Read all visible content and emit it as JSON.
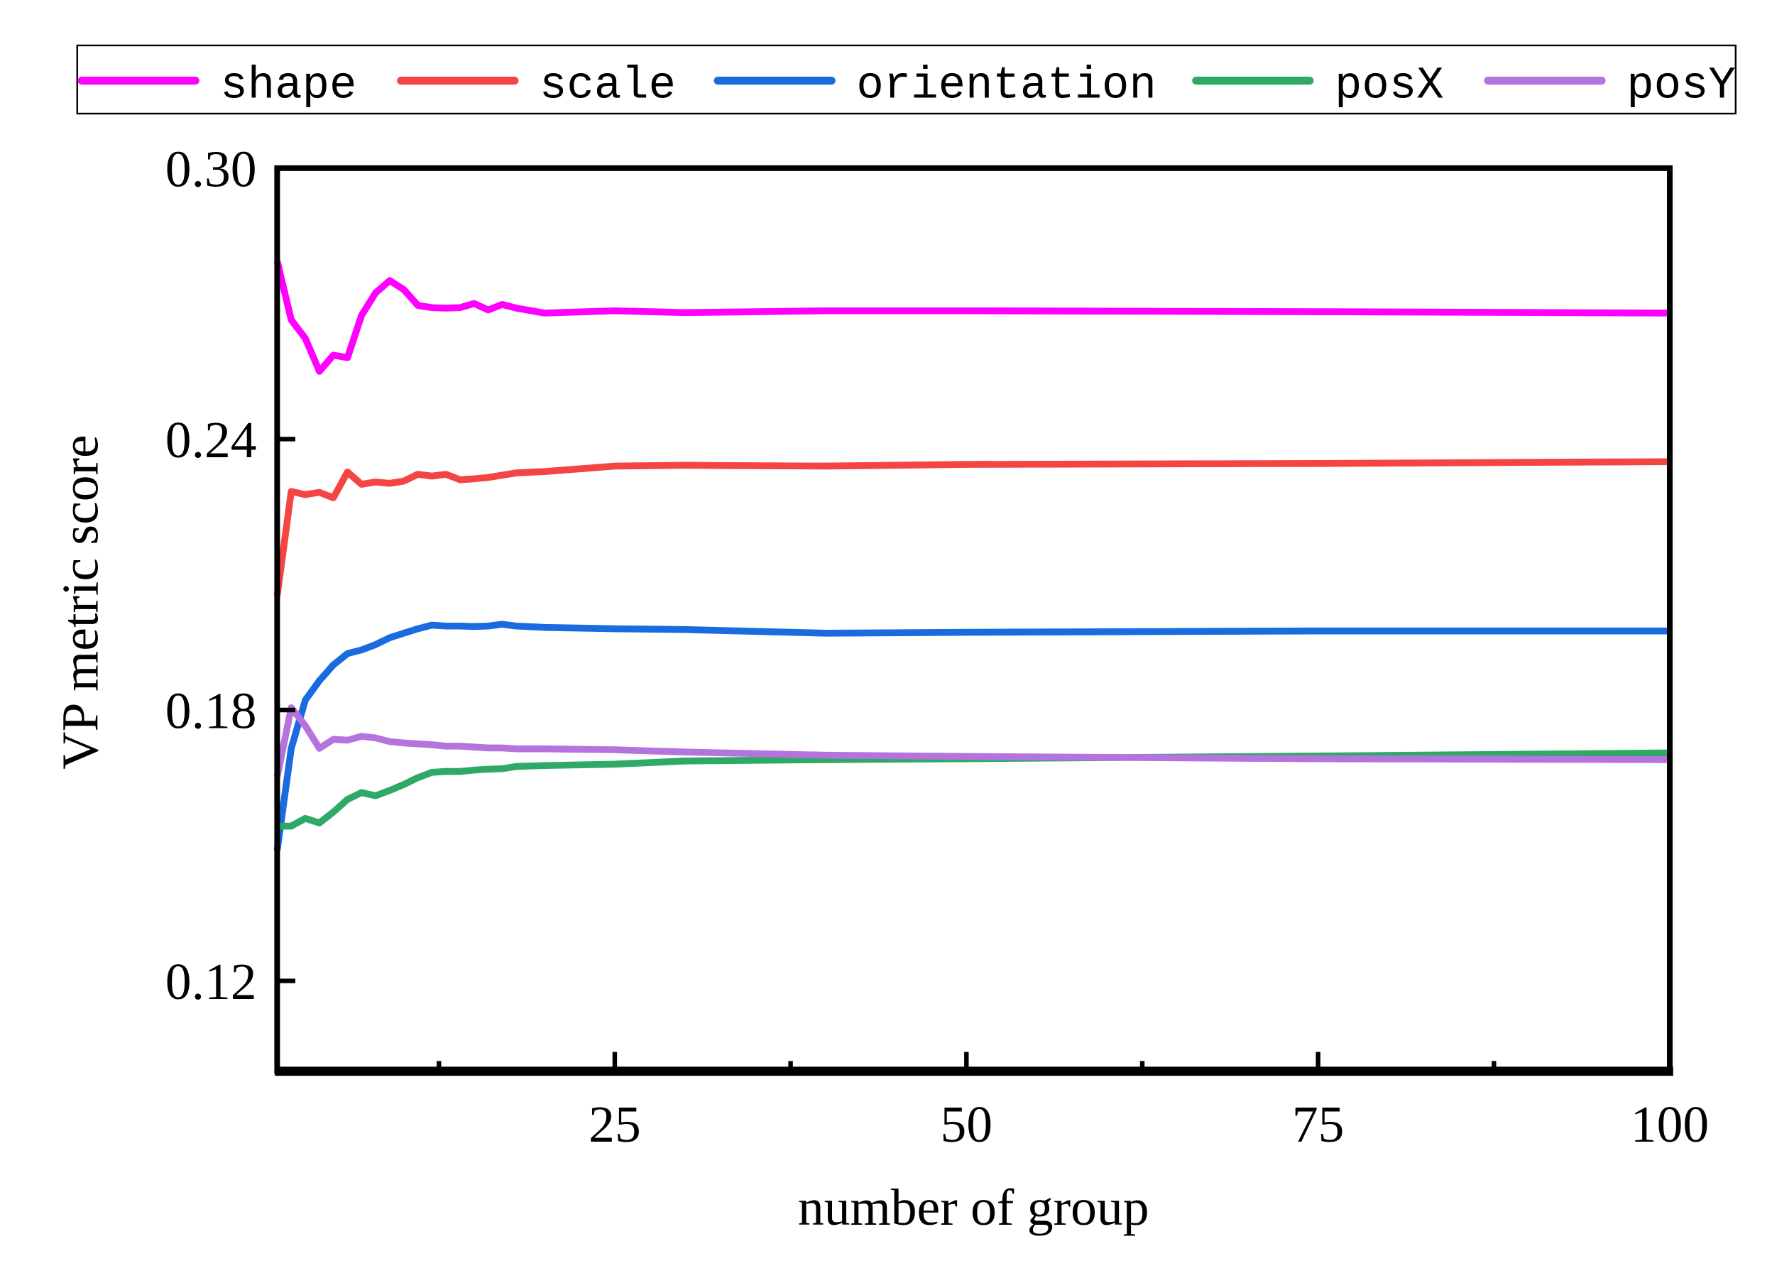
{
  "chart_data": {
    "type": "line",
    "title": "",
    "xlabel": "number of group",
    "ylabel": "VP metric score",
    "xlim": [
      1,
      100
    ],
    "ylim": [
      0.1,
      0.3
    ],
    "xticks": [
      25,
      50,
      75,
      100
    ],
    "xtick_labels": [
      "25",
      "50",
      "75",
      "100"
    ],
    "xminor_ticks": [
      12.5,
      37.5,
      62.5,
      87.5
    ],
    "yticks": [
      0.12,
      0.18,
      0.24,
      0.3
    ],
    "ytick_labels": [
      "0.12",
      "0.18",
      "0.24",
      "0.30"
    ],
    "grid": false,
    "legend_placement": "top, outside",
    "x": [
      1,
      2,
      3,
      4,
      5,
      6,
      7,
      8,
      9,
      10,
      11,
      12,
      13,
      14,
      15,
      16,
      17,
      18,
      20,
      25,
      30,
      40,
      50,
      75,
      100
    ],
    "series": [
      {
        "name": "shape",
        "color": "#ff00ff",
        "values": [
          0.2794,
          0.2664,
          0.2623,
          0.255,
          0.2586,
          0.258,
          0.2674,
          0.2724,
          0.2751,
          0.2731,
          0.2696,
          0.2691,
          0.269,
          0.2691,
          0.27,
          0.2686,
          0.2698,
          0.269,
          0.2679,
          0.2684,
          0.268,
          0.2684,
          0.2684,
          0.2682,
          0.2679
        ]
      },
      {
        "name": "scale",
        "color": "#f44444",
        "values": [
          0.2053,
          0.2284,
          0.2277,
          0.2282,
          0.227,
          0.2327,
          0.23,
          0.2305,
          0.2302,
          0.2307,
          0.2322,
          0.2318,
          0.2322,
          0.231,
          0.2312,
          0.2315,
          0.232,
          0.2325,
          0.2328,
          0.234,
          0.2342,
          0.234,
          0.2344,
          0.2346,
          0.235
        ]
      },
      {
        "name": "orientation",
        "color": "#1a6ae0",
        "values": [
          0.1489,
          0.1715,
          0.1822,
          0.1865,
          0.19,
          0.1925,
          0.1933,
          0.1945,
          0.196,
          0.197,
          0.198,
          0.1988,
          0.1986,
          0.1986,
          0.1985,
          0.1986,
          0.199,
          0.1986,
          0.1983,
          0.198,
          0.1978,
          0.197,
          0.1972,
          0.1975,
          0.1975
        ]
      },
      {
        "name": "posX",
        "color": "#2eaa66",
        "values": [
          0.1543,
          0.1543,
          0.156,
          0.155,
          0.1574,
          0.1602,
          0.1617,
          0.161,
          0.1622,
          0.1635,
          0.165,
          0.1662,
          0.1664,
          0.1664,
          0.1667,
          0.1669,
          0.167,
          0.1675,
          0.1677,
          0.168,
          0.1687,
          0.169,
          0.1692,
          0.1698,
          0.1705
        ]
      },
      {
        "name": "posY",
        "color": "#b574dd",
        "values": [
          0.1652,
          0.1805,
          0.1765,
          0.1715,
          0.1735,
          0.1733,
          0.1742,
          0.1738,
          0.173,
          0.1727,
          0.1725,
          0.1723,
          0.172,
          0.172,
          0.1718,
          0.1716,
          0.1716,
          0.1714,
          0.1714,
          0.1712,
          0.1707,
          0.17,
          0.1697,
          0.1692,
          0.169
        ]
      }
    ]
  }
}
